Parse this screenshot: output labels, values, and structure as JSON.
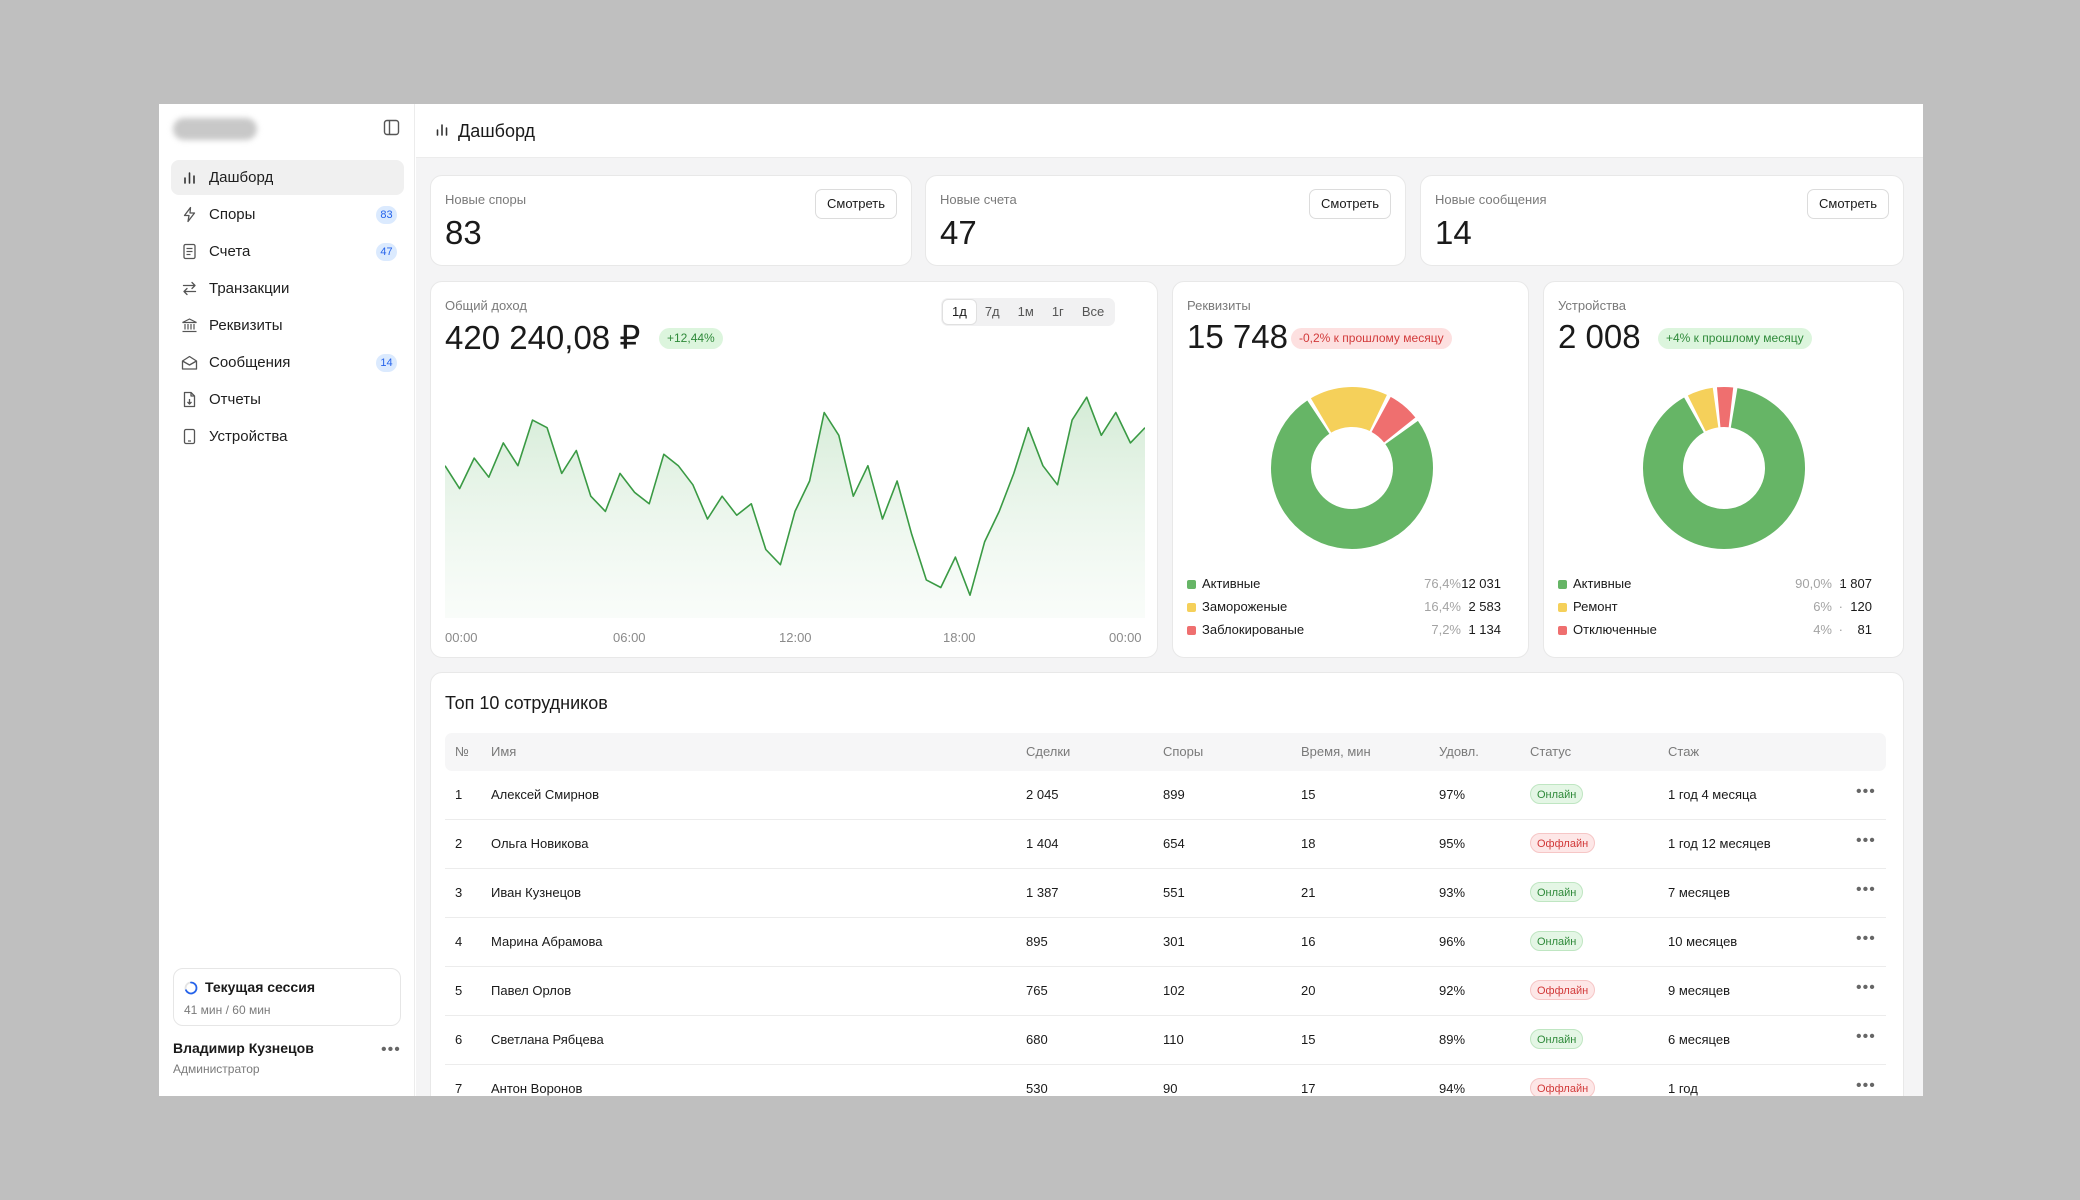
{
  "sidebar": {
    "items": [
      {
        "label": "Дашборд",
        "icon": "bar-chart-icon",
        "badge": null,
        "active": true
      },
      {
        "label": "Споры",
        "icon": "lightning-icon",
        "badge": "83"
      },
      {
        "label": "Счета",
        "icon": "document-icon",
        "badge": "47"
      },
      {
        "label": "Транзакции",
        "icon": "transfer-arrows-icon",
        "badge": null
      },
      {
        "label": "Реквизиты",
        "icon": "bank-icon",
        "badge": null
      },
      {
        "label": "Сообщения",
        "icon": "mail-icon",
        "badge": "14"
      },
      {
        "label": "Отчеты",
        "icon": "report-file-icon",
        "badge": null
      },
      {
        "label": "Устройства",
        "icon": "device-icon",
        "badge": null
      }
    ],
    "session": {
      "title": "Текущая сессия",
      "time": "41 мин / 60 мин",
      "progress": 0.683
    },
    "user": {
      "name": "Владимир Кузнецов",
      "role": "Администратор"
    }
  },
  "header": {
    "title": "Дашборд"
  },
  "stats": [
    {
      "label": "Новые споры",
      "value": "83",
      "button": "Смотреть"
    },
    {
      "label": "Новые счета",
      "value": "47",
      "button": "Смотреть"
    },
    {
      "label": "Новые сообщения",
      "value": "14",
      "button": "Смотреть"
    }
  ],
  "income": {
    "label": "Общий доход",
    "value": "420 240,08 ₽",
    "change": "+12,44%",
    "ranges": [
      "1д",
      "7д",
      "1м",
      "1г",
      "Все"
    ],
    "active_range": "1д",
    "x_labels": [
      "00:00",
      "06:00",
      "12:00",
      "18:00",
      "00:00"
    ]
  },
  "requisites": {
    "label": "Реквизиты",
    "value": "15 748",
    "change": "-0,2% к прошлому месяцу",
    "legend": [
      {
        "name": "Активные",
        "pct": "76,4%",
        "value": "12 031",
        "color": "#66b566"
      },
      {
        "name": "Замороженые",
        "pct": "16,4%",
        "value": "2 583",
        "color": "#f5d05a"
      },
      {
        "name": "Заблокированые",
        "pct": "7,2%",
        "value": "1 134",
        "color": "#ef6f6f"
      }
    ]
  },
  "devices": {
    "label": "Устройства",
    "value": "2 008",
    "change": "+4% к прошлому месяцу",
    "legend": [
      {
        "name": "Активные",
        "pct": "90,0%",
        "value": "1 807",
        "color": "#66b566"
      },
      {
        "name": "Ремонт",
        "pct": "6%",
        "value": "120",
        "color": "#f5d05a"
      },
      {
        "name": "Отключенные",
        "pct": "4%",
        "value": "81",
        "color": "#ef6f6f"
      }
    ]
  },
  "chart_data": [
    {
      "type": "line",
      "title": "Общий доход",
      "x": [
        "00:00",
        "00:30",
        "01:00",
        "01:30",
        "02:00",
        "02:30",
        "03:00",
        "03:30",
        "04:00",
        "04:30",
        "05:00",
        "05:30",
        "06:00",
        "06:30",
        "07:00",
        "07:30",
        "08:00",
        "08:30",
        "09:00",
        "09:30",
        "10:00",
        "10:30",
        "11:00",
        "11:30",
        "12:00",
        "12:30",
        "13:00",
        "13:30",
        "14:00",
        "14:30",
        "15:00",
        "15:30",
        "16:00",
        "16:30",
        "17:00",
        "17:30",
        "18:00",
        "18:30",
        "19:00",
        "19:30",
        "20:00",
        "20:30",
        "21:00",
        "21:30",
        "22:00",
        "22:30",
        "23:00",
        "23:30",
        "24:00"
      ],
      "series": [
        {
          "values": [
            60,
            54,
            62,
            57,
            66,
            60,
            72,
            70,
            58,
            64,
            52,
            48,
            58,
            53,
            50,
            63,
            60,
            55,
            46,
            52,
            47,
            50,
            38,
            34,
            48,
            56,
            74,
            68,
            52,
            60,
            46,
            56,
            42,
            30,
            28,
            36,
            26,
            40,
            48,
            58,
            70,
            60,
            55,
            72,
            78,
            68,
            74,
            66,
            70
          ],
          "color": "#3a9a44"
        }
      ],
      "x_tick_labels": [
        "00:00",
        "06:00",
        "12:00",
        "18:00",
        "00:00"
      ]
    },
    {
      "type": "pie",
      "title": "Реквизиты",
      "categories": [
        "Активные",
        "Замороженые",
        "Заблокированые"
      ],
      "values": [
        12031,
        2583,
        1134
      ],
      "colors": [
        "#66b566",
        "#f5d05a",
        "#ef6f6f"
      ]
    },
    {
      "type": "pie",
      "title": "Устройства",
      "categories": [
        "Активные",
        "Ремонт",
        "Отключенные"
      ],
      "values": [
        1807,
        120,
        81
      ],
      "colors": [
        "#66b566",
        "#f5d05a",
        "#ef6f6f"
      ]
    }
  ],
  "table": {
    "title": "Топ 10 сотрудников",
    "columns": [
      "№",
      "Имя",
      "Сделки",
      "Споры",
      "Время, мин",
      "Удовл.",
      "Статус",
      "Стаж"
    ],
    "rows": [
      {
        "n": "1",
        "name": "Алексей Смирнов",
        "deals": "2 045",
        "disputes": "899",
        "time": "15",
        "sat": "97%",
        "status": "Онлайн",
        "online": true,
        "tenure": "1 год 4 месяца"
      },
      {
        "n": "2",
        "name": "Ольга Новикова",
        "deals": "1 404",
        "disputes": "654",
        "time": "18",
        "sat": "95%",
        "status": "Оффлайн",
        "online": false,
        "tenure": "1 год 12 месяцев"
      },
      {
        "n": "3",
        "name": "Иван Кузнецов",
        "deals": "1 387",
        "disputes": "551",
        "time": "21",
        "sat": "93%",
        "status": "Онлайн",
        "online": true,
        "tenure": "7 месяцев"
      },
      {
        "n": "4",
        "name": "Марина Абрамова",
        "deals": "895",
        "disputes": "301",
        "time": "16",
        "sat": "96%",
        "status": "Онлайн",
        "online": true,
        "tenure": "10 месяцев"
      },
      {
        "n": "5",
        "name": "Павел Орлов",
        "deals": "765",
        "disputes": "102",
        "time": "20",
        "sat": "92%",
        "status": "Оффлайн",
        "online": false,
        "tenure": "9 месяцев"
      },
      {
        "n": "6",
        "name": "Светлана Рябцева",
        "deals": "680",
        "disputes": "110",
        "time": "15",
        "sat": "89%",
        "status": "Онлайн",
        "online": true,
        "tenure": "6 месяцев"
      },
      {
        "n": "7",
        "name": "Антон Воронов",
        "deals": "530",
        "disputes": "90",
        "time": "17",
        "sat": "94%",
        "status": "Оффлайн",
        "online": false,
        "tenure": "1 год"
      }
    ]
  }
}
